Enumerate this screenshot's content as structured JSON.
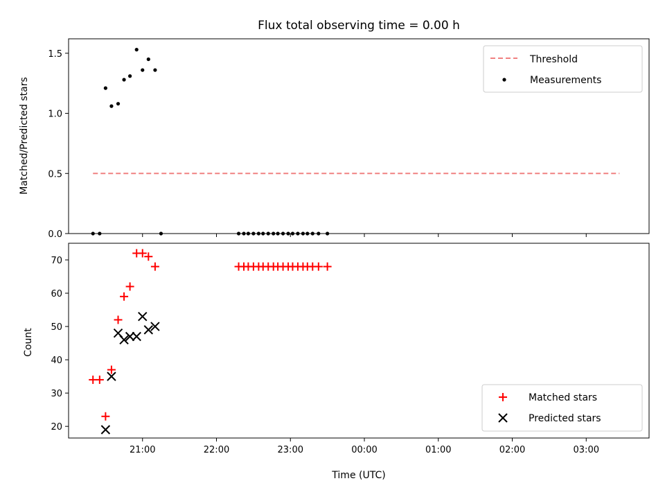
{
  "chart_data": [
    {
      "type": "scatter",
      "title": "Flux total observing time = 0.00 h",
      "ylabel": "Matched/Predicted stars",
      "ylim": [
        0,
        1.62
      ],
      "yticks": [
        0.0,
        0.5,
        1.0,
        1.5
      ],
      "ytick_labels": [
        "0.0",
        "0.5",
        "1.0",
        "1.5"
      ],
      "xlim": [
        20.0,
        27.85
      ],
      "legend_position": "top-right",
      "threshold": {
        "name": "Threshold",
        "value": 0.5,
        "x_start": 20.33,
        "x_end": 27.45,
        "color": "#f08080"
      },
      "series": [
        {
          "name": "Measurements",
          "color": "#000000",
          "x": [
            20.33,
            20.42,
            20.5,
            20.58,
            20.67,
            20.75,
            20.83,
            20.92,
            21.0,
            21.08,
            21.17,
            21.25,
            22.3,
            22.37,
            22.43,
            22.5,
            22.57,
            22.63,
            22.7,
            22.77,
            22.83,
            22.9,
            22.97,
            23.03,
            23.1,
            23.17,
            23.23,
            23.3,
            23.38,
            23.5
          ],
          "y": [
            0,
            0,
            1.21,
            1.06,
            1.08,
            1.28,
            1.31,
            1.53,
            1.36,
            1.45,
            1.36,
            0,
            0,
            0,
            0,
            0,
            0,
            0,
            0,
            0,
            0,
            0,
            0,
            0,
            0,
            0,
            0,
            0,
            0,
            0
          ]
        }
      ]
    },
    {
      "type": "scatter",
      "xlabel": "Time (UTC)",
      "ylabel": "Count",
      "ylim": [
        16.5,
        75
      ],
      "yticks": [
        20,
        30,
        40,
        50,
        60,
        70
      ],
      "ytick_labels": [
        "20",
        "30",
        "40",
        "50",
        "60",
        "70"
      ],
      "xlim": [
        20.0,
        27.85
      ],
      "xticks": [
        21,
        22,
        23,
        24,
        25,
        26,
        27
      ],
      "xtick_labels": [
        "21:00",
        "22:00",
        "23:00",
        "00:00",
        "01:00",
        "02:00",
        "03:00"
      ],
      "legend_position": "bottom-right",
      "series": [
        {
          "name": "Matched stars",
          "marker": "plus",
          "color": "#ff0000",
          "x": [
            20.33,
            20.42,
            20.5,
            20.58,
            20.67,
            20.75,
            20.83,
            20.92,
            21.0,
            21.08,
            21.17,
            22.3,
            22.37,
            22.43,
            22.5,
            22.57,
            22.63,
            22.7,
            22.77,
            22.83,
            22.9,
            22.97,
            23.03,
            23.1,
            23.17,
            23.23,
            23.3,
            23.38,
            23.5
          ],
          "y": [
            34,
            34,
            23,
            37,
            52,
            59,
            62,
            72,
            72,
            71,
            68,
            68,
            68,
            68,
            68,
            68,
            68,
            68,
            68,
            68,
            68,
            68,
            68,
            68,
            68,
            68,
            68,
            68,
            68
          ]
        },
        {
          "name": "Predicted stars",
          "marker": "x",
          "color": "#000000",
          "x": [
            20.5,
            20.58,
            20.67,
            20.75,
            20.83,
            20.92,
            21.0,
            21.08,
            21.17
          ],
          "y": [
            19,
            35,
            48,
            46,
            47,
            47,
            53,
            49,
            50
          ]
        }
      ]
    }
  ]
}
